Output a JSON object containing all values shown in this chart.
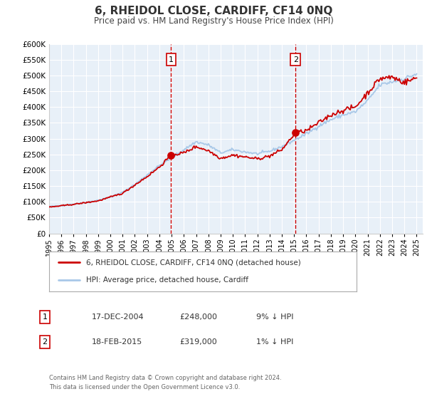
{
  "title": "6, RHEIDOL CLOSE, CARDIFF, CF14 0NQ",
  "subtitle": "Price paid vs. HM Land Registry's House Price Index (HPI)",
  "ylim": [
    0,
    600000
  ],
  "yticks": [
    0,
    50000,
    100000,
    150000,
    200000,
    250000,
    300000,
    350000,
    400000,
    450000,
    500000,
    550000,
    600000
  ],
  "xlim_start": 1995.0,
  "xlim_end": 2025.5,
  "hpi_color": "#a8c8e8",
  "price_color": "#cc0000",
  "marker_color": "#cc0000",
  "bg_color": "#e8f0f8",
  "grid_color": "#ffffff",
  "legend_label_price": "6, RHEIDOL CLOSE, CARDIFF, CF14 0NQ (detached house)",
  "legend_label_hpi": "HPI: Average price, detached house, Cardiff",
  "transaction1_x": 2004.96,
  "transaction1_y": 248000,
  "transaction1_label": "1",
  "transaction1_date": "17-DEC-2004",
  "transaction1_price": "£248,000",
  "transaction1_hpi": "9% ↓ HPI",
  "transaction2_x": 2015.12,
  "transaction2_y": 319000,
  "transaction2_label": "2",
  "transaction2_date": "18-FEB-2015",
  "transaction2_price": "£319,000",
  "transaction2_hpi": "1% ↓ HPI",
  "footer_line1": "Contains HM Land Registry data © Crown copyright and database right 2024.",
  "footer_line2": "This data is licensed under the Open Government Licence v3.0."
}
